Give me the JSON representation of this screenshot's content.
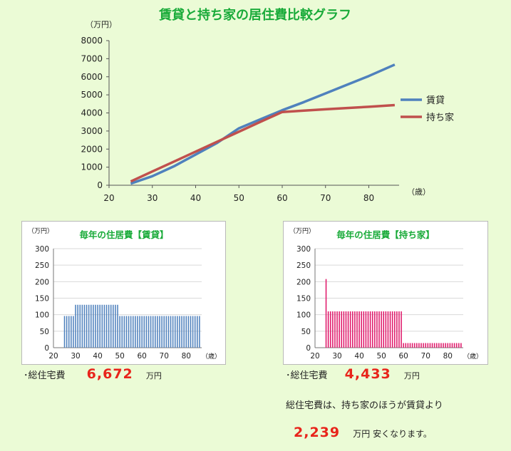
{
  "chart_data": [
    {
      "type": "line",
      "title": "賃貸と持ち家の居住費比較グラフ",
      "ylabel": "（万円）",
      "xlabel": "（歳）",
      "xlim": [
        20,
        87
      ],
      "ylim": [
        0,
        8000
      ],
      "xticks": [
        20,
        30,
        40,
        50,
        60,
        70,
        80
      ],
      "yticks": [
        0,
        1000,
        2000,
        3000,
        4000,
        5000,
        6000,
        7000,
        8000
      ],
      "grid": false,
      "legend": "right",
      "series": [
        {
          "name": "賃貸",
          "color": "#4f81bd",
          "points": [
            [
              25,
              90
            ],
            [
              30,
              500
            ],
            [
              35,
              1050
            ],
            [
              40,
              1700
            ],
            [
              45,
              2350
            ],
            [
              50,
              3150
            ],
            [
              55,
              3650
            ],
            [
              60,
              4150
            ],
            [
              65,
              4600
            ],
            [
              70,
              5080
            ],
            [
              75,
              5560
            ],
            [
              80,
              6040
            ],
            [
              86,
              6672
            ]
          ]
        },
        {
          "name": "持ち家",
          "color": "#c0504d",
          "points": [
            [
              25,
              210
            ],
            [
              30,
              760
            ],
            [
              35,
              1310
            ],
            [
              40,
              1860
            ],
            [
              45,
              2410
            ],
            [
              50,
              2960
            ],
            [
              55,
              3510
            ],
            [
              60,
              4050
            ],
            [
              65,
              4130
            ],
            [
              70,
              4200
            ],
            [
              75,
              4270
            ],
            [
              80,
              4340
            ],
            [
              86,
              4433
            ]
          ]
        }
      ]
    },
    {
      "type": "bar",
      "title": "毎年の住居費【賃貸】",
      "ylabel": "（万円）",
      "xlabel": "（歳）",
      "xlim": [
        20,
        87
      ],
      "ylim": [
        0,
        300
      ],
      "xticks": [
        20,
        30,
        40,
        50,
        60,
        70,
        80
      ],
      "yticks": [
        0,
        50,
        100,
        150,
        200,
        250,
        300
      ],
      "color": "#4f81bd",
      "segments": [
        {
          "from": 25,
          "to": 29,
          "value": 96
        },
        {
          "from": 30,
          "to": 49,
          "value": 130
        },
        {
          "from": 50,
          "to": 86,
          "value": 96
        }
      ]
    },
    {
      "type": "bar",
      "title": "毎年の住居費【持ち家】",
      "ylabel": "（万円）",
      "xlabel": "（歳）",
      "xlim": [
        20,
        87
      ],
      "ylim": [
        0,
        300
      ],
      "xticks": [
        20,
        30,
        40,
        50,
        60,
        70,
        80
      ],
      "yticks": [
        0,
        50,
        100,
        150,
        200,
        250,
        300
      ],
      "color": "#e0196b",
      "segments": [
        {
          "from": 25,
          "to": 25,
          "value": 208
        },
        {
          "from": 26,
          "to": 59,
          "value": 110
        },
        {
          "from": 60,
          "to": 86,
          "value": 14
        }
      ]
    }
  ],
  "summary": {
    "rent_label": "･総住宅費",
    "rent_total": "6,672",
    "own_label": "･総住宅費",
    "own_total": "4,433",
    "unit": "万円",
    "compare_line": "総住宅費は、持ち家のほうが賃貸より",
    "diff_value": "2,239",
    "diff_suffix": "万円 安くなります。"
  },
  "colors": {
    "background": "#ebfbd6",
    "title_green": "#1aab3a",
    "highlight_red": "#e8241b"
  }
}
